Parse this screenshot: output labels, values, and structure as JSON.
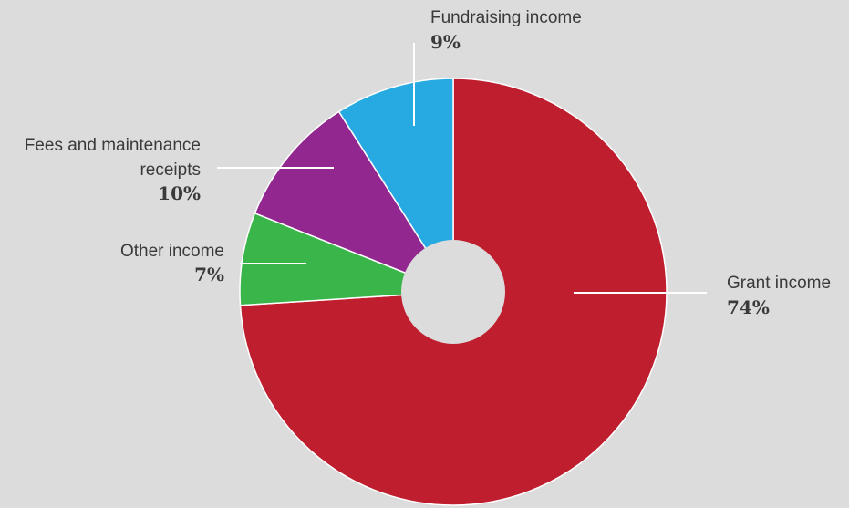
{
  "chart_data": {
    "type": "pie",
    "title": "",
    "slices": [
      {
        "name": "Grant income",
        "name_lines": [
          "Grant income"
        ],
        "percent_label": "74%",
        "value": 74,
        "color": "#be1e2d"
      },
      {
        "name": "Other income",
        "name_lines": [
          "Other income"
        ],
        "percent_label": "7%",
        "value": 7,
        "color": "#3ab54a"
      },
      {
        "name": "Fees and maintenance receipts",
        "name_lines": [
          "Fees and maintenance",
          "receipts"
        ],
        "percent_label": "10%",
        "value": 10,
        "color": "#92278f"
      },
      {
        "name": "Fundraising income",
        "name_lines": [
          "Fundraising income"
        ],
        "percent_label": "9%",
        "value": 9,
        "color": "#27aae1"
      }
    ],
    "leader_line_color": "#ffffff",
    "background": "#dcdcdc"
  }
}
